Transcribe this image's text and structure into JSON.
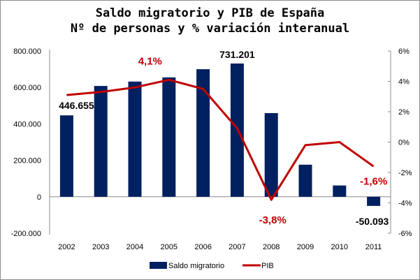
{
  "chart_data": {
    "type": "bar",
    "title_lines": [
      "Saldo migratorio y PIB de España",
      "Nº de personas y % variación interanual"
    ],
    "categories": [
      "2002",
      "2003",
      "2004",
      "2005",
      "2006",
      "2007",
      "2008",
      "2009",
      "2010",
      "2011"
    ],
    "series": [
      {
        "name": "Saldo migratorio",
        "type": "bar",
        "axis": "left",
        "color": "#002060",
        "values": [
          446655,
          608000,
          632000,
          655000,
          700000,
          731201,
          459000,
          176000,
          62000,
          -50093
        ]
      },
      {
        "name": "PIB",
        "type": "line",
        "axis": "right",
        "color": "#c00000",
        "values": [
          3.1,
          3.3,
          3.6,
          4.1,
          3.5,
          0.9,
          -3.8,
          -0.2,
          0.0,
          -1.6
        ]
      }
    ],
    "left_axis": {
      "ylim": [
        -200000,
        800000
      ],
      "ticks": [
        -200000,
        0,
        200000,
        400000,
        600000,
        800000
      ],
      "tick_labels": [
        "-200.000",
        "0",
        "200.000",
        "400.000",
        "600.000",
        "800.000"
      ]
    },
    "right_axis": {
      "ylim": [
        -6,
        6
      ],
      "ticks": [
        -6,
        -4,
        -2,
        0,
        2,
        4,
        6
      ],
      "tick_labels": [
        "-6%",
        "-4%",
        "-2%",
        "0%",
        "2%",
        "4%",
        "6%"
      ]
    },
    "bar_data_labels": [
      {
        "index": 0,
        "text": "446.655"
      },
      {
        "index": 5,
        "text": "731.201"
      },
      {
        "index": 9,
        "text": "-50.093"
      }
    ],
    "line_data_labels": [
      {
        "index": 3,
        "text": "4,1%"
      },
      {
        "index": 6,
        "text": "-3,8%"
      },
      {
        "index": 9,
        "text": "-1,6%"
      }
    ],
    "legend": [
      "Saldo migratorio",
      "PIB"
    ],
    "legend_position": "bottom",
    "grid": false
  }
}
